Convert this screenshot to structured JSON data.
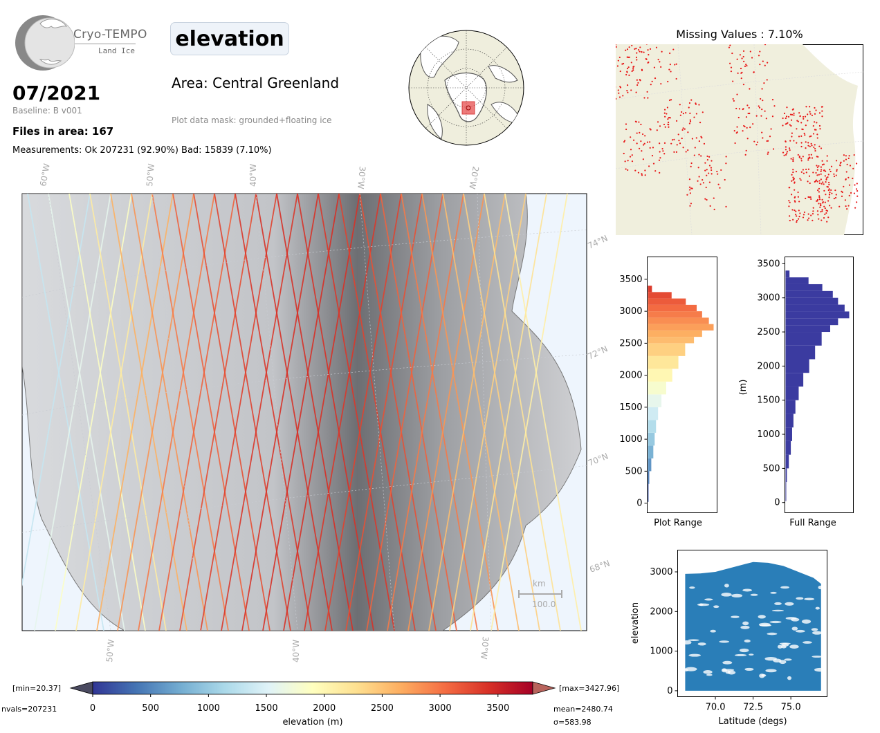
{
  "header": {
    "logo_name": "Cryo-TEMPO",
    "logo_sub": "Land Ice",
    "variable": "elevation",
    "date": "07/2021",
    "baseline": "Baseline: B v001",
    "area": "Area: Central Greenland",
    "mask": "Plot data mask: grounded+floating ice",
    "files": "Files in area: 167",
    "measurements": "Measurements: Ok 207231 (92.90%) Bad: 15839 (7.10%)"
  },
  "main_map": {
    "lon_labels_top": [
      "60°W",
      "50°W",
      "40°W",
      "30°W",
      "20°W"
    ],
    "lon_labels_bottom": [
      "50°W",
      "40°W",
      "30°W"
    ],
    "lat_labels": [
      "74°N",
      "72°N",
      "70°N",
      "68°N"
    ],
    "scale_unit": "km",
    "scale_value": "100.0"
  },
  "missing": {
    "title": "Missing Values : 7.10%"
  },
  "colorbar": {
    "min_label": "[min=20.37]",
    "max_label": "[max=3427.96]",
    "nvals": "nvals=207231",
    "mean": "mean=2480.74",
    "sigma": "σ=583.98",
    "label": "elevation (m)",
    "ticks": [
      "0",
      "500",
      "1000",
      "1500",
      "2000",
      "2500",
      "3000",
      "3500"
    ]
  },
  "chart_data": [
    {
      "type": "bar",
      "orientation": "horizontal",
      "title": "",
      "xlabel": "Plot Range",
      "ylabel": "",
      "ylim": [
        -150,
        3850
      ],
      "yticks": [
        "0",
        "500",
        "1000",
        "1500",
        "2000",
        "2500",
        "3000",
        "3500"
      ],
      "bins": [
        20,
        300,
        500,
        700,
        900,
        1100,
        1300,
        1500,
        1700,
        1900,
        2100,
        2300,
        2500,
        2600,
        2700,
        2800,
        2900,
        3000,
        3100,
        3200,
        3300
      ],
      "values": [
        1,
        2,
        5,
        8,
        10,
        12,
        15,
        20,
        27,
        36,
        45,
        55,
        68,
        80,
        97,
        90,
        80,
        72,
        56,
        35,
        6
      ]
    },
    {
      "type": "bar",
      "orientation": "horizontal",
      "title": "",
      "xlabel": "Full Range",
      "ylabel": "(m)",
      "ylim": [
        -150,
        3600
      ],
      "yticks": [
        "0",
        "500",
        "1000",
        "1500",
        "2000",
        "2500",
        "3000",
        "3500"
      ],
      "bins": [
        20,
        300,
        500,
        700,
        900,
        1100,
        1300,
        1500,
        1700,
        1900,
        2100,
        2300,
        2500,
        2600,
        2700,
        2800,
        2900,
        3000,
        3100,
        3200,
        3300
      ],
      "values": [
        1,
        2,
        5,
        8,
        10,
        12,
        15,
        20,
        27,
        36,
        45,
        55,
        68,
        80,
        97,
        90,
        80,
        72,
        56,
        35,
        6
      ]
    },
    {
      "type": "scatter",
      "title": "",
      "xlabel": "Latitude (degs)",
      "ylabel": "elevation",
      "xlim": [
        67.5,
        77.4
      ],
      "ylim": [
        -150,
        3550
      ],
      "xticks": [
        "70.0",
        "72.5",
        "75.0"
      ],
      "yticks": [
        "0",
        "1000",
        "2000",
        "3000"
      ],
      "color": "#1f77b4",
      "upper_envelope": [
        [
          68.0,
          2950
        ],
        [
          69.0,
          2960
        ],
        [
          70.0,
          3000
        ],
        [
          71.0,
          3100
        ],
        [
          72.0,
          3200
        ],
        [
          72.5,
          3250
        ],
        [
          73.5,
          3230
        ],
        [
          74.5,
          3150
        ],
        [
          75.5,
          3000
        ],
        [
          76.5,
          2850
        ],
        [
          77.0,
          2700
        ]
      ],
      "lower_bound": 0
    }
  ]
}
